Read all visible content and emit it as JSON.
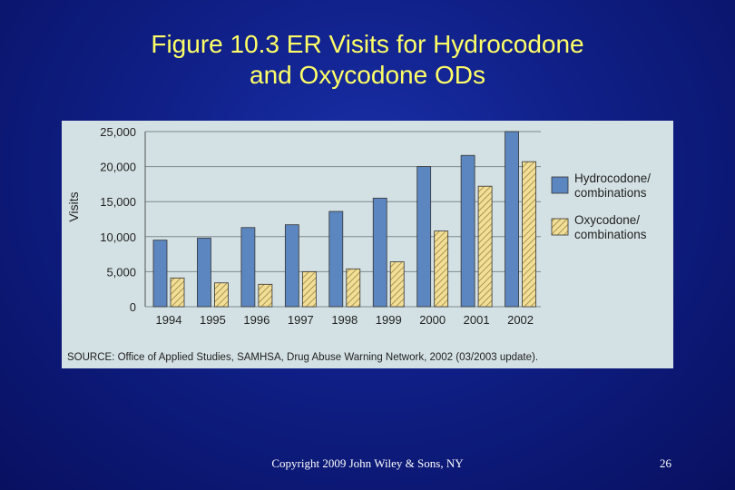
{
  "slide": {
    "title_line1": "Figure 10.3 ER Visits for Hydrocodone",
    "title_line2": "and Oxycodone ODs",
    "copyright": "Copyright 2009 John Wiley & Sons, NY",
    "page_number": "26"
  },
  "colors": {
    "background": "#0f1f86",
    "title": "#ffff66",
    "panel": "#d4e1e4",
    "hydrocodone": "#5c86bf",
    "oxycodone": "#f3de95"
  },
  "chart_data": {
    "type": "bar",
    "ylabel": "Visits",
    "ylim": [
      0,
      25000
    ],
    "yticks": [
      0,
      5000,
      10000,
      15000,
      20000,
      25000
    ],
    "ytick_labels": [
      "0",
      "5,000",
      "10,000",
      "15,000",
      "20,000",
      "25,000"
    ],
    "categories": [
      "1994",
      "1995",
      "1996",
      "1997",
      "1998",
      "1999",
      "2000",
      "2001",
      "2002"
    ],
    "series": [
      {
        "name_line1": "Hydrocodone/",
        "name_line2": "combinations",
        "fill": "solid",
        "values": [
          9500,
          9800,
          11300,
          11700,
          13600,
          15500,
          20000,
          21600,
          25000
        ]
      },
      {
        "name_line1": "Oxycodone/",
        "name_line2": "combinations",
        "fill": "hatched",
        "values": [
          4100,
          3400,
          3200,
          5000,
          5400,
          6400,
          10800,
          17200,
          20700
        ]
      }
    ],
    "grid": "horizontal",
    "legend_position": "right",
    "source": "SOURCE: Office of Applied Studies, SAMHSA, Drug Abuse Warning Network, 2002 (03/2003 update)."
  }
}
